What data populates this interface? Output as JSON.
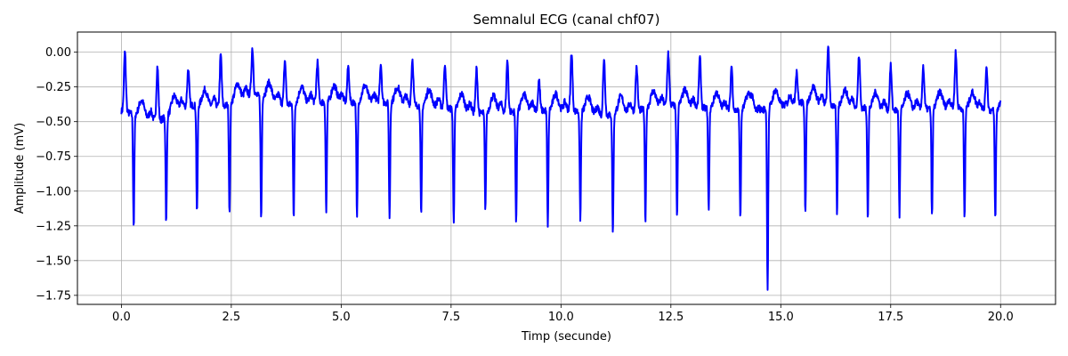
{
  "chart_data": {
    "type": "line",
    "title": "Semnalul ECG (canal chf07)",
    "xlabel": "Timp (secunde)",
    "ylabel": "Amplitude (mV)",
    "xlim": [
      -1.0,
      21.25
    ],
    "ylim": [
      -1.815,
      0.145
    ],
    "xticks": [
      0.0,
      2.5,
      5.0,
      7.5,
      10.0,
      12.5,
      15.0,
      17.5,
      20.0
    ],
    "xtick_labels": [
      "0.0",
      "2.5",
      "5.0",
      "7.5",
      "10.0",
      "12.5",
      "15.0",
      "17.5",
      "20.0"
    ],
    "yticks": [
      0.0,
      -0.25,
      -0.5,
      -0.75,
      -1.0,
      -1.25,
      -1.5,
      -1.75
    ],
    "ytick_labels": [
      "0.00",
      "−0.25",
      "−0.50",
      "−0.75",
      "−1.00",
      "−1.25",
      "−1.50",
      "−1.75"
    ],
    "grid": true,
    "line_color": "#0000ff",
    "x_range": [
      0.0,
      20.0
    ],
    "beats": [
      {
        "t": 0.08,
        "r": 0.0,
        "s": -1.24,
        "base": -0.43
      },
      {
        "t": 0.82,
        "r": -0.1,
        "s": -1.26,
        "base": -0.5
      },
      {
        "t": 1.52,
        "r": -0.12,
        "s": -1.16,
        "base": -0.38
      },
      {
        "t": 2.26,
        "r": -0.02,
        "s": -1.19,
        "base": -0.4
      },
      {
        "t": 2.98,
        "r": 0.03,
        "s": -1.18,
        "base": -0.3
      },
      {
        "t": 3.72,
        "r": -0.06,
        "s": -1.22,
        "base": -0.38
      },
      {
        "t": 4.46,
        "r": -0.07,
        "s": -1.16,
        "base": -0.36
      },
      {
        "t": 5.16,
        "r": -0.1,
        "s": -1.2,
        "base": -0.36
      },
      {
        "t": 5.9,
        "r": -0.08,
        "s": -1.18,
        "base": -0.36
      },
      {
        "t": 6.62,
        "r": -0.05,
        "s": -1.18,
        "base": -0.38
      },
      {
        "t": 7.36,
        "r": -0.08,
        "s": -1.21,
        "base": -0.4
      },
      {
        "t": 8.08,
        "r": -0.12,
        "s": -1.13,
        "base": -0.44
      },
      {
        "t": 8.78,
        "r": -0.06,
        "s": -1.24,
        "base": -0.43
      },
      {
        "t": 9.5,
        "r": -0.2,
        "s": -1.24,
        "base": -0.42
      },
      {
        "t": 10.24,
        "r": 0.0,
        "s": -1.19,
        "base": -0.42
      },
      {
        "t": 10.98,
        "r": -0.04,
        "s": -1.32,
        "base": -0.46
      },
      {
        "t": 11.72,
        "r": -0.1,
        "s": -1.23,
        "base": -0.42
      },
      {
        "t": 12.44,
        "r": 0.0,
        "s": -1.19,
        "base": -0.38
      },
      {
        "t": 13.16,
        "r": -0.04,
        "s": -1.15,
        "base": -0.4
      },
      {
        "t": 13.88,
        "r": -0.1,
        "s": -1.19,
        "base": -0.42
      },
      {
        "t": 14.5,
        "r": -0.4,
        "s": -1.71,
        "base": -0.42
      },
      {
        "t": 15.36,
        "r": -0.13,
        "s": -1.15,
        "base": -0.36
      },
      {
        "t": 16.08,
        "r": 0.05,
        "s": -1.18,
        "base": -0.38
      },
      {
        "t": 16.78,
        "r": -0.02,
        "s": -1.19,
        "base": -0.4
      },
      {
        "t": 17.5,
        "r": -0.1,
        "s": -1.18,
        "base": -0.42
      },
      {
        "t": 18.24,
        "r": -0.1,
        "s": -1.19,
        "base": -0.41
      },
      {
        "t": 18.98,
        "r": 0.0,
        "s": -1.19,
        "base": -0.4
      },
      {
        "t": 19.68,
        "r": -0.1,
        "s": -1.21,
        "base": -0.42
      }
    ]
  }
}
